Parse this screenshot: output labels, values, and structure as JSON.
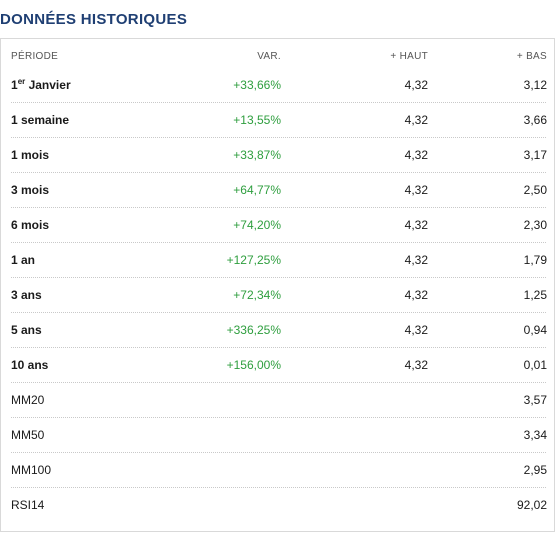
{
  "title": "DONNÉES HISTORIQUES",
  "columns": {
    "period": "PÉRIODE",
    "var": "VAR.",
    "haut": "+ HAUT",
    "bas": "+ BAS"
  },
  "rows": [
    {
      "period_main": "1",
      "period_sup": "er",
      "period_rest": " Janvier",
      "var": "+33,66%",
      "haut": "4,32",
      "bas": "3,12"
    },
    {
      "period": "1 semaine",
      "var": "+13,55%",
      "haut": "4,32",
      "bas": "3,66"
    },
    {
      "period": "1 mois",
      "var": "+33,87%",
      "haut": "4,32",
      "bas": "3,17"
    },
    {
      "period": "3 mois",
      "var": "+64,77%",
      "haut": "4,32",
      "bas": "2,50"
    },
    {
      "period": "6 mois",
      "var": "+74,20%",
      "haut": "4,32",
      "bas": "2,30"
    },
    {
      "period": "1 an",
      "var": "+127,25%",
      "haut": "4,32",
      "bas": "1,79"
    },
    {
      "period": "3 ans",
      "var": "+72,34%",
      "haut": "4,32",
      "bas": "1,25"
    },
    {
      "period": "5 ans",
      "var": "+336,25%",
      "haut": "4,32",
      "bas": "0,94"
    },
    {
      "period": "10 ans",
      "var": "+156,00%",
      "haut": "4,32",
      "bas": "0,01"
    }
  ],
  "indicators": [
    {
      "label": "MM20",
      "value": "3,57"
    },
    {
      "label": "MM50",
      "value": "3,34"
    },
    {
      "label": "MM100",
      "value": "2,95"
    },
    {
      "label": "RSI14",
      "value": "92,02"
    }
  ],
  "colors": {
    "title": "#1f3f73",
    "positive": "#2e9e3e"
  }
}
